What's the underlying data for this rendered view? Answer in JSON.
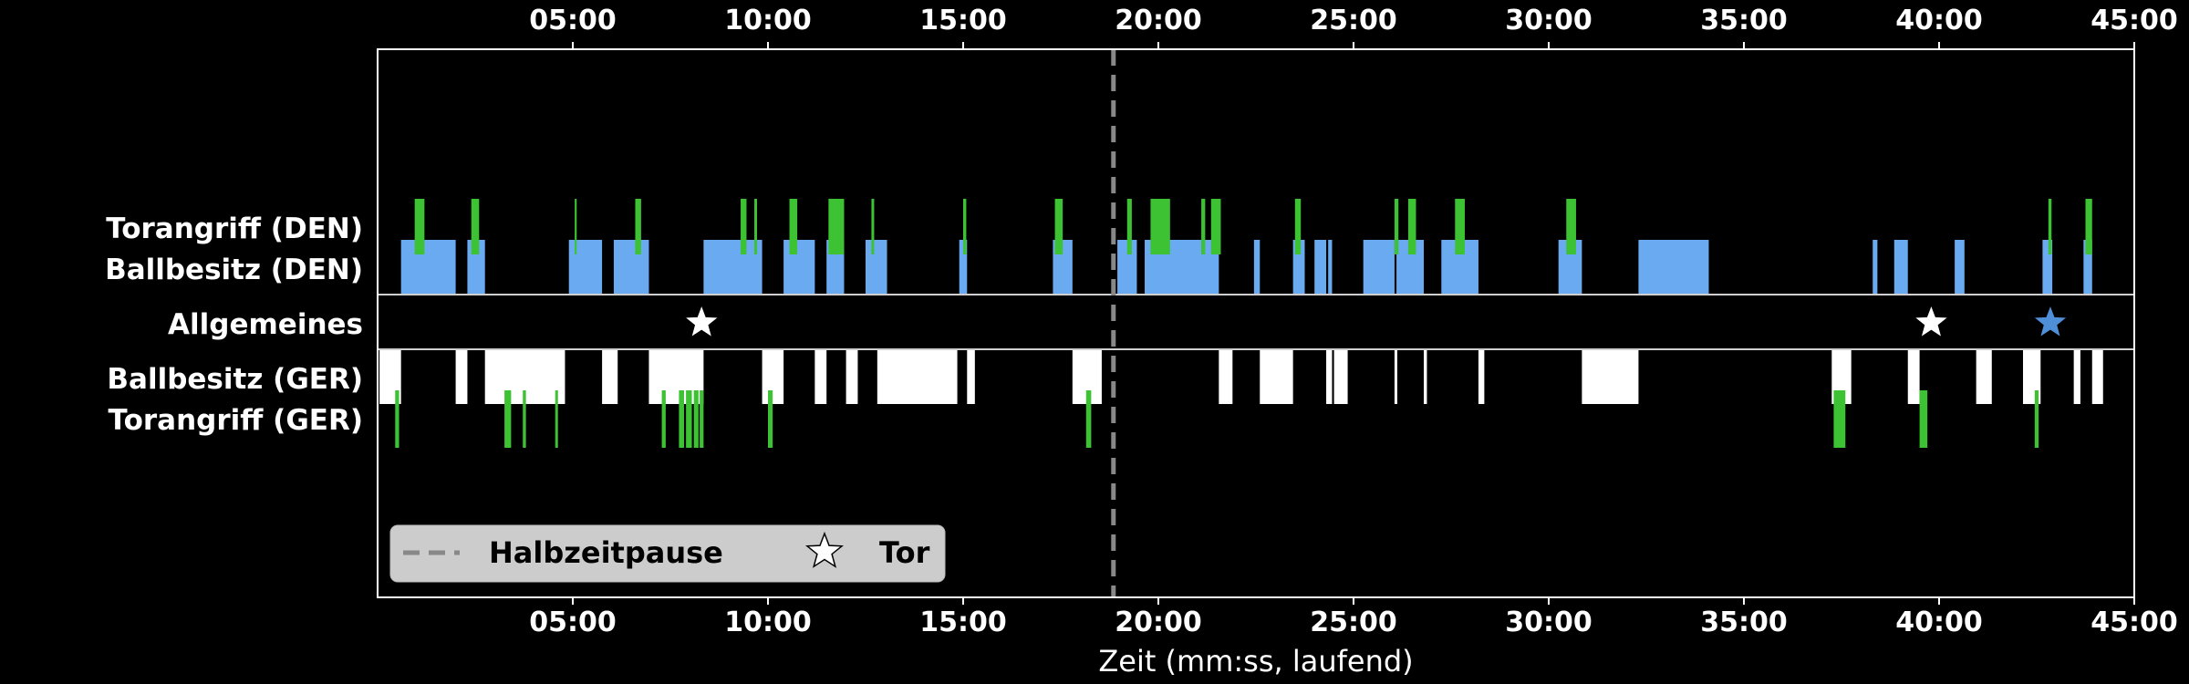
{
  "chart_data": {
    "type": "timeline",
    "xlabel": "Zeit (mm:ss, laufend)",
    "xlim": [
      0,
      45
    ],
    "xticks": [
      {
        "value": 5,
        "label": "05:00"
      },
      {
        "value": 10,
        "label": "10:00"
      },
      {
        "value": 15,
        "label": "15:00"
      },
      {
        "value": 20,
        "label": "20:00"
      },
      {
        "value": 25,
        "label": "25:00"
      },
      {
        "value": 30,
        "label": "30:00"
      },
      {
        "value": 35,
        "label": "35:00"
      },
      {
        "value": 40,
        "label": "40:00"
      },
      {
        "value": 45,
        "label": "45:00"
      }
    ],
    "halftime": 18.85,
    "rows": {
      "torangriff_den": "Torangriff (DEN)",
      "ballbesitz_den": "Ballbesitz (DEN)",
      "allgemeines": "Allgemeines",
      "ballbesitz_ger": "Ballbesitz (GER)",
      "torangriff_ger": "Torangriff (GER)"
    },
    "colors": {
      "den_possession": "#6aaaf0",
      "ger_possession": "#ffffff",
      "attack": "#3cc232",
      "halftime": "#888888",
      "goal_ger": "#ffffff",
      "goal_den": "#4f8fd8"
    },
    "ballbesitz_den": [
      [
        0.6,
        2.0
      ],
      [
        2.3,
        2.75
      ],
      [
        4.9,
        5.75
      ],
      [
        6.05,
        6.95
      ],
      [
        8.35,
        9.85
      ],
      [
        10.4,
        11.2
      ],
      [
        11.5,
        11.95
      ],
      [
        12.5,
        13.05
      ],
      [
        14.9,
        15.1
      ],
      [
        17.3,
        17.8
      ],
      [
        18.95,
        19.45
      ],
      [
        19.65,
        21.55
      ],
      [
        22.45,
        22.6
      ],
      [
        23.45,
        23.75
      ],
      [
        24.0,
        24.3
      ],
      [
        24.35,
        24.45
      ],
      [
        25.25,
        26.05
      ],
      [
        26.1,
        26.8
      ],
      [
        27.25,
        28.2
      ],
      [
        30.25,
        30.85
      ],
      [
        32.3,
        34.1
      ],
      [
        38.3,
        38.42
      ],
      [
        38.85,
        39.2
      ],
      [
        40.4,
        40.65
      ],
      [
        42.65,
        42.9
      ],
      [
        43.7,
        43.92
      ]
    ],
    "torangriff_den": [
      [
        0.95,
        1.2
      ],
      [
        2.4,
        2.6
      ],
      [
        5.05,
        5.1
      ],
      [
        6.6,
        6.75
      ],
      [
        9.3,
        9.45
      ],
      [
        9.65,
        9.72
      ],
      [
        10.55,
        10.75
      ],
      [
        11.55,
        11.95
      ],
      [
        12.65,
        12.72
      ],
      [
        15.0,
        15.08
      ],
      [
        17.35,
        17.55
      ],
      [
        19.2,
        19.32
      ],
      [
        19.8,
        20.3
      ],
      [
        21.1,
        21.2
      ],
      [
        21.35,
        21.6
      ],
      [
        23.5,
        23.65
      ],
      [
        26.05,
        26.15
      ],
      [
        26.4,
        26.6
      ],
      [
        27.6,
        27.85
      ],
      [
        30.45,
        30.7
      ],
      [
        42.8,
        42.88
      ],
      [
        43.75,
        43.92
      ]
    ],
    "ballbesitz_ger": [
      [
        0.05,
        0.6
      ],
      [
        2.0,
        2.3
      ],
      [
        2.75,
        4.8
      ],
      [
        5.75,
        6.15
      ],
      [
        6.95,
        8.35
      ],
      [
        9.85,
        10.4
      ],
      [
        11.2,
        11.5
      ],
      [
        12.0,
        12.3
      ],
      [
        12.8,
        14.85
      ],
      [
        15.1,
        15.3
      ],
      [
        17.8,
        18.55
      ],
      [
        21.55,
        21.9
      ],
      [
        22.6,
        23.45
      ],
      [
        24.3,
        24.45
      ],
      [
        24.5,
        24.85
      ],
      [
        26.05,
        26.12
      ],
      [
        26.8,
        26.88
      ],
      [
        28.2,
        28.35
      ],
      [
        30.85,
        32.3
      ],
      [
        37.25,
        37.75
      ],
      [
        39.2,
        39.5
      ],
      [
        40.95,
        41.35
      ],
      [
        42.15,
        42.6
      ],
      [
        43.45,
        43.62
      ],
      [
        43.92,
        44.2
      ]
    ],
    "torangriff_ger": [
      [
        0.45,
        0.55
      ],
      [
        3.25,
        3.42
      ],
      [
        3.72,
        3.8
      ],
      [
        4.55,
        4.62
      ],
      [
        7.28,
        7.38
      ],
      [
        7.72,
        7.85
      ],
      [
        7.9,
        8.05
      ],
      [
        8.1,
        8.22
      ],
      [
        8.25,
        8.35
      ],
      [
        10.0,
        10.12
      ],
      [
        18.15,
        18.28
      ],
      [
        37.3,
        37.6
      ],
      [
        39.5,
        39.7
      ],
      [
        42.45,
        42.55
      ]
    ],
    "goals": [
      {
        "time": 8.3,
        "team": "GER"
      },
      {
        "time": 39.8,
        "team": "GER"
      },
      {
        "time": 42.85,
        "team": "DEN"
      }
    ],
    "legend": {
      "position": "lower-left",
      "entries": [
        {
          "label": "Halbzeitpause",
          "marker": "dashed-line"
        },
        {
          "label": "Tor",
          "marker": "star"
        }
      ]
    }
  }
}
